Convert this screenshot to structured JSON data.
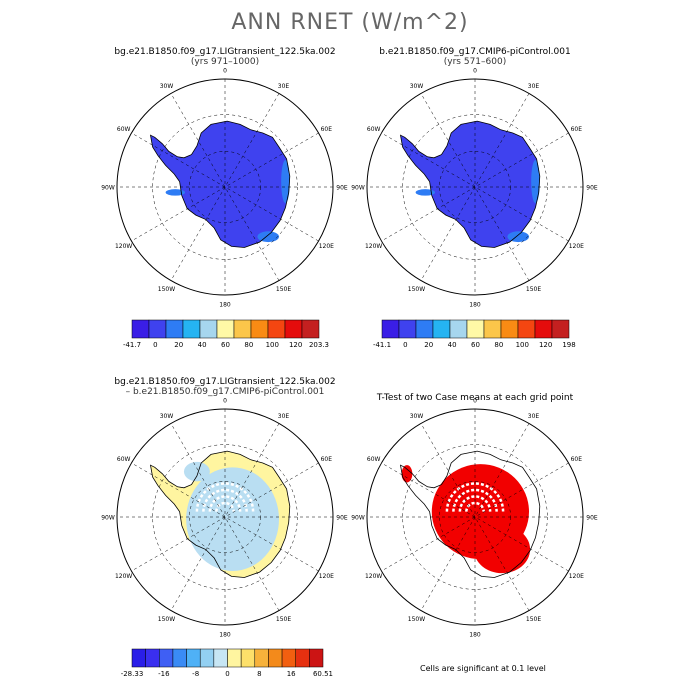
{
  "title": "ANN RNET (W/m^2)",
  "footnote": "Cells are significant at 0.1 level",
  "colors": {
    "land_scale": [
      "#3a1ee6",
      "#3f42ef",
      "#2e7cf4",
      "#25b4f2",
      "#a6d6ee",
      "#fff9a6",
      "#fbc64a",
      "#f98b14",
      "#f44611",
      "#e50c0c",
      "#c42020"
    ],
    "diff_scale": [
      "#2a1ee8",
      "#3a2ff0",
      "#3f5ff4",
      "#3a8bf5",
      "#4fb1f6",
      "#93d0f2",
      "#c7e6f4",
      "#fff5a0",
      "#fde06a",
      "#f7b23b",
      "#f38a1b",
      "#f25f10",
      "#e63010",
      "#cc1414"
    ],
    "sig": "#f20000"
  },
  "chart_data": [
    {
      "type": "heatmap",
      "projection": "south-polar-stereographic",
      "title": "bg.e21.B1850.f09_g17.LIGtransient_122.5ka.002",
      "subtitle": "(yrs 971–1000)",
      "lon_labels": [
        "0",
        "30E",
        "60E",
        "90E",
        "120E",
        "150E",
        "180",
        "150W",
        "120W",
        "90W",
        "60W",
        "30W"
      ],
      "colorbar": {
        "labels": [
          "-41.7",
          "0",
          "20",
          "40",
          "60",
          "80",
          "100",
          "120",
          "203.3"
        ],
        "min": -41.7,
        "max": 203.3
      }
    },
    {
      "type": "heatmap",
      "projection": "south-polar-stereographic",
      "title": "b.e21.B1850.f09_g17.CMIP6-piControl.001",
      "subtitle": "(yrs 571–600)",
      "lon_labels": [
        "0",
        "30E",
        "60E",
        "90E",
        "120E",
        "150E",
        "180",
        "150W",
        "120W",
        "90W",
        "60W",
        "30W"
      ],
      "colorbar": {
        "labels": [
          "-41.1",
          "0",
          "20",
          "40",
          "60",
          "80",
          "100",
          "120",
          "198"
        ],
        "min": -41.1,
        "max": 198
      }
    },
    {
      "type": "heatmap",
      "projection": "south-polar-stereographic",
      "title": "bg.e21.B1850.f09_g17.LIGtransient_122.5ka.002",
      "subtitle": "– b.e21.B1850.f09_g17.CMIP6-piControl.001",
      "lon_labels": [
        "0",
        "30E",
        "60E",
        "90E",
        "120E",
        "150E",
        "180",
        "150W",
        "120W",
        "90W",
        "60W",
        "30W"
      ],
      "colorbar": {
        "labels": [
          "-28.33",
          "-16",
          "-8",
          "0",
          "8",
          "16",
          "60.51"
        ],
        "min": -28.33,
        "max": 60.51
      }
    },
    {
      "type": "heatmap",
      "projection": "south-polar-stereographic",
      "title": "T-Test of two Case means at each grid point",
      "subtitle": "",
      "lon_labels": [
        "0",
        "30E",
        "60E",
        "90E",
        "120E",
        "150E",
        "180",
        "150W",
        "120W",
        "90W",
        "60W",
        "30W"
      ]
    }
  ]
}
